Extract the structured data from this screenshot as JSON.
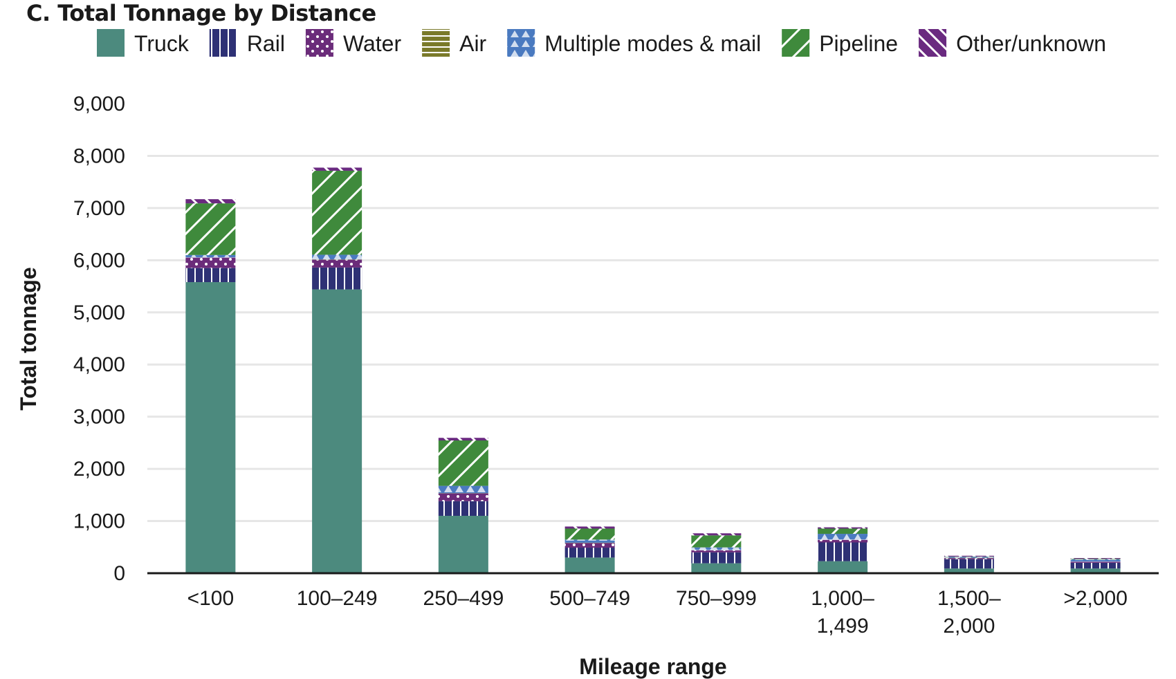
{
  "chart_data": {
    "type": "bar",
    "stacked": true,
    "title": "C. Total Tonnage by Distance",
    "xlabel": "Mileage range",
    "ylabel": "Total tonnage",
    "ylim": [
      0,
      9000
    ],
    "yticks": [
      0,
      1000,
      2000,
      3000,
      4000,
      5000,
      6000,
      7000,
      8000,
      9000
    ],
    "ytick_labels": [
      "0",
      "1,000",
      "2,000",
      "3,000",
      "4,000",
      "5,000",
      "6,000",
      "7,000",
      "8,000",
      "9,000"
    ],
    "grid": true,
    "legend_position": "top",
    "categories": [
      "<100",
      "100–249",
      "250–499",
      "500–749",
      "750–999",
      "1,000–1,499",
      "1,500–2,000",
      ">2,000"
    ],
    "category_label_lines": [
      [
        "<100"
      ],
      [
        "100–249"
      ],
      [
        "250–499"
      ],
      [
        "500–749"
      ],
      [
        "750–999"
      ],
      [
        "1,000–",
        "1,499"
      ],
      [
        "1,500–",
        "2,000"
      ],
      [
        ">2,000"
      ]
    ],
    "series": [
      {
        "name": "Truck",
        "color": "#4c8a7e",
        "pattern": "solid",
        "values": [
          5580,
          5440,
          1100,
          300,
          190,
          230,
          90,
          90
        ]
      },
      {
        "name": "Rail",
        "color": "#2e3175",
        "pattern": "vertical-lines",
        "values": [
          270,
          420,
          280,
          190,
          210,
          360,
          180,
          110
        ]
      },
      {
        "name": "Water",
        "color": "#6b2c7a",
        "pattern": "dots",
        "values": [
          200,
          150,
          150,
          90,
          40,
          50,
          20,
          20
        ]
      },
      {
        "name": "Air",
        "color": "#7a7a2a",
        "pattern": "horizontal-lines",
        "values": [
          5,
          5,
          5,
          5,
          5,
          5,
          5,
          5
        ]
      },
      {
        "name": "Multiple modes & mail",
        "color": "#4a7ac0",
        "pattern": "triangles",
        "values": [
          45,
          90,
          140,
          60,
          50,
          110,
          20,
          40
        ]
      },
      {
        "name": "Pipeline",
        "color": "#3f8a3c",
        "pattern": "diagonal-back",
        "values": [
          990,
          1610,
          870,
          210,
          230,
          100,
          5,
          10
        ]
      },
      {
        "name": "Other/unknown",
        "color": "#6a2a80",
        "pattern": "diagonal-fwd",
        "values": [
          80,
          60,
          50,
          40,
          40,
          25,
          15,
          15
        ]
      }
    ]
  }
}
